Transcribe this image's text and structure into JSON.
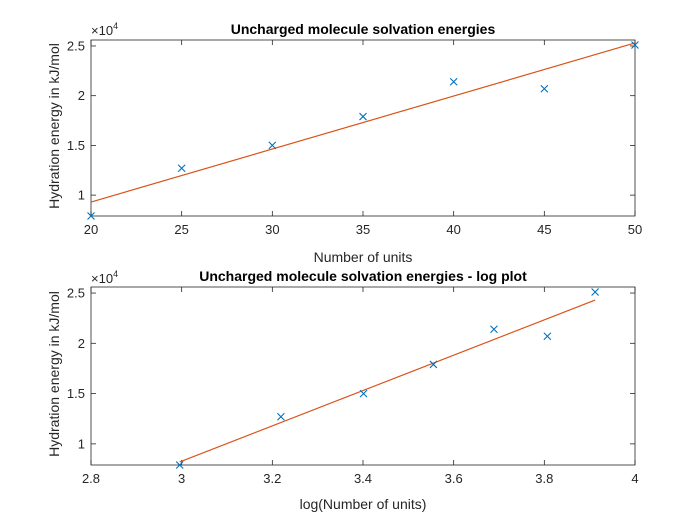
{
  "chart_data": [
    {
      "type": "scatter",
      "title": "Uncharged molecule solvation energies",
      "xlabel": "Number of units",
      "ylabel": "Hydration energy in kJ/mol",
      "xlim": [
        20,
        50
      ],
      "ylim": [
        7900,
        25600
      ],
      "xticks": [
        20,
        25,
        30,
        35,
        40,
        45,
        50
      ],
      "xtick_labels": [
        "20",
        "25",
        "30",
        "35",
        "40",
        "45",
        "50"
      ],
      "yticks": [
        10000,
        15000,
        20000,
        25000
      ],
      "ytick_labels": [
        "1",
        "1.5",
        "2",
        "2.5"
      ],
      "y_exponent": {
        "base": "×10",
        "power": "4"
      },
      "points": {
        "x": [
          20,
          25,
          30,
          35,
          40,
          45,
          50
        ],
        "y": [
          7900,
          12700,
          15000,
          17900,
          21400,
          20700,
          25100
        ]
      },
      "fit_line": {
        "x": [
          20,
          50
        ],
        "y": [
          9300,
          25300
        ]
      },
      "colors": {
        "points": "#0072BD",
        "fit": "#D95319"
      }
    },
    {
      "type": "scatter",
      "title": "Uncharged molecule solvation energies - log plot",
      "xlabel": "log(Number of units)",
      "ylabel": "Hydration energy in kJ/mol",
      "xlim": [
        2.8,
        4
      ],
      "ylim": [
        7900,
        25600
      ],
      "xticks": [
        2.8,
        3,
        3.2,
        3.4,
        3.6,
        3.8,
        4
      ],
      "xtick_labels": [
        "2.8",
        "3",
        "3.2",
        "3.4",
        "3.6",
        "3.8",
        "4"
      ],
      "yticks": [
        10000,
        15000,
        20000,
        25000
      ],
      "ytick_labels": [
        "1",
        "1.5",
        "2",
        "2.5"
      ],
      "y_exponent": {
        "base": "×10",
        "power": "4"
      },
      "points": {
        "x": [
          2.9957,
          3.2189,
          3.4012,
          3.5553,
          3.6889,
          3.8067,
          3.912
        ],
        "y": [
          7900,
          12700,
          15000,
          17900,
          21400,
          20700,
          25100
        ]
      },
      "fit_line": {
        "x": [
          2.9957,
          3.912
        ],
        "y": [
          8200,
          24300
        ]
      },
      "colors": {
        "points": "#0072BD",
        "fit": "#D95319"
      }
    }
  ]
}
